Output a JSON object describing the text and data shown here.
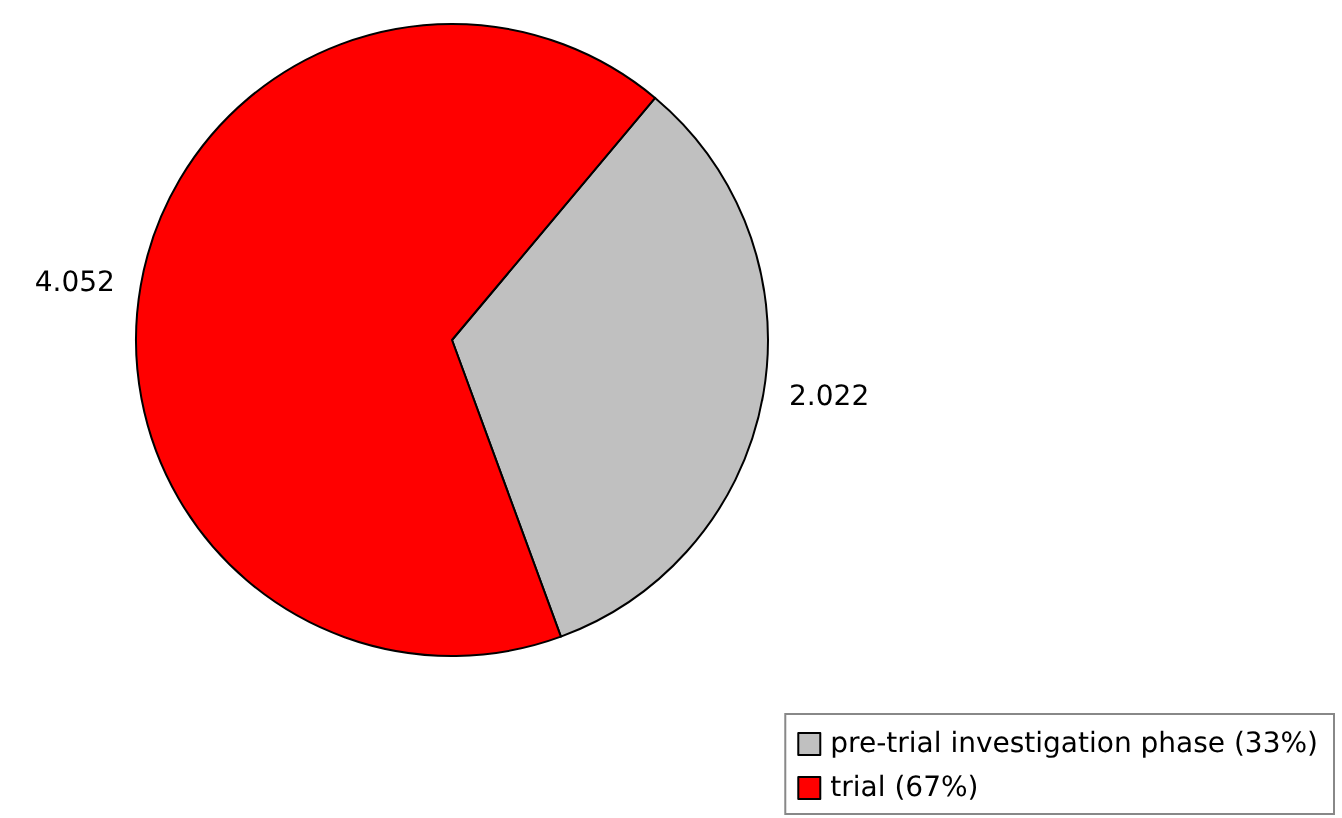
{
  "chart_data": {
    "type": "pie",
    "categories": [
      "pre-trial investigation phase (33%)",
      "trial (67%)"
    ],
    "values": [
      2.022,
      4.052
    ],
    "colors": [
      "#c0c0c0",
      "#ff0000"
    ],
    "data_labels": true,
    "legend": "bottom right"
  }
}
